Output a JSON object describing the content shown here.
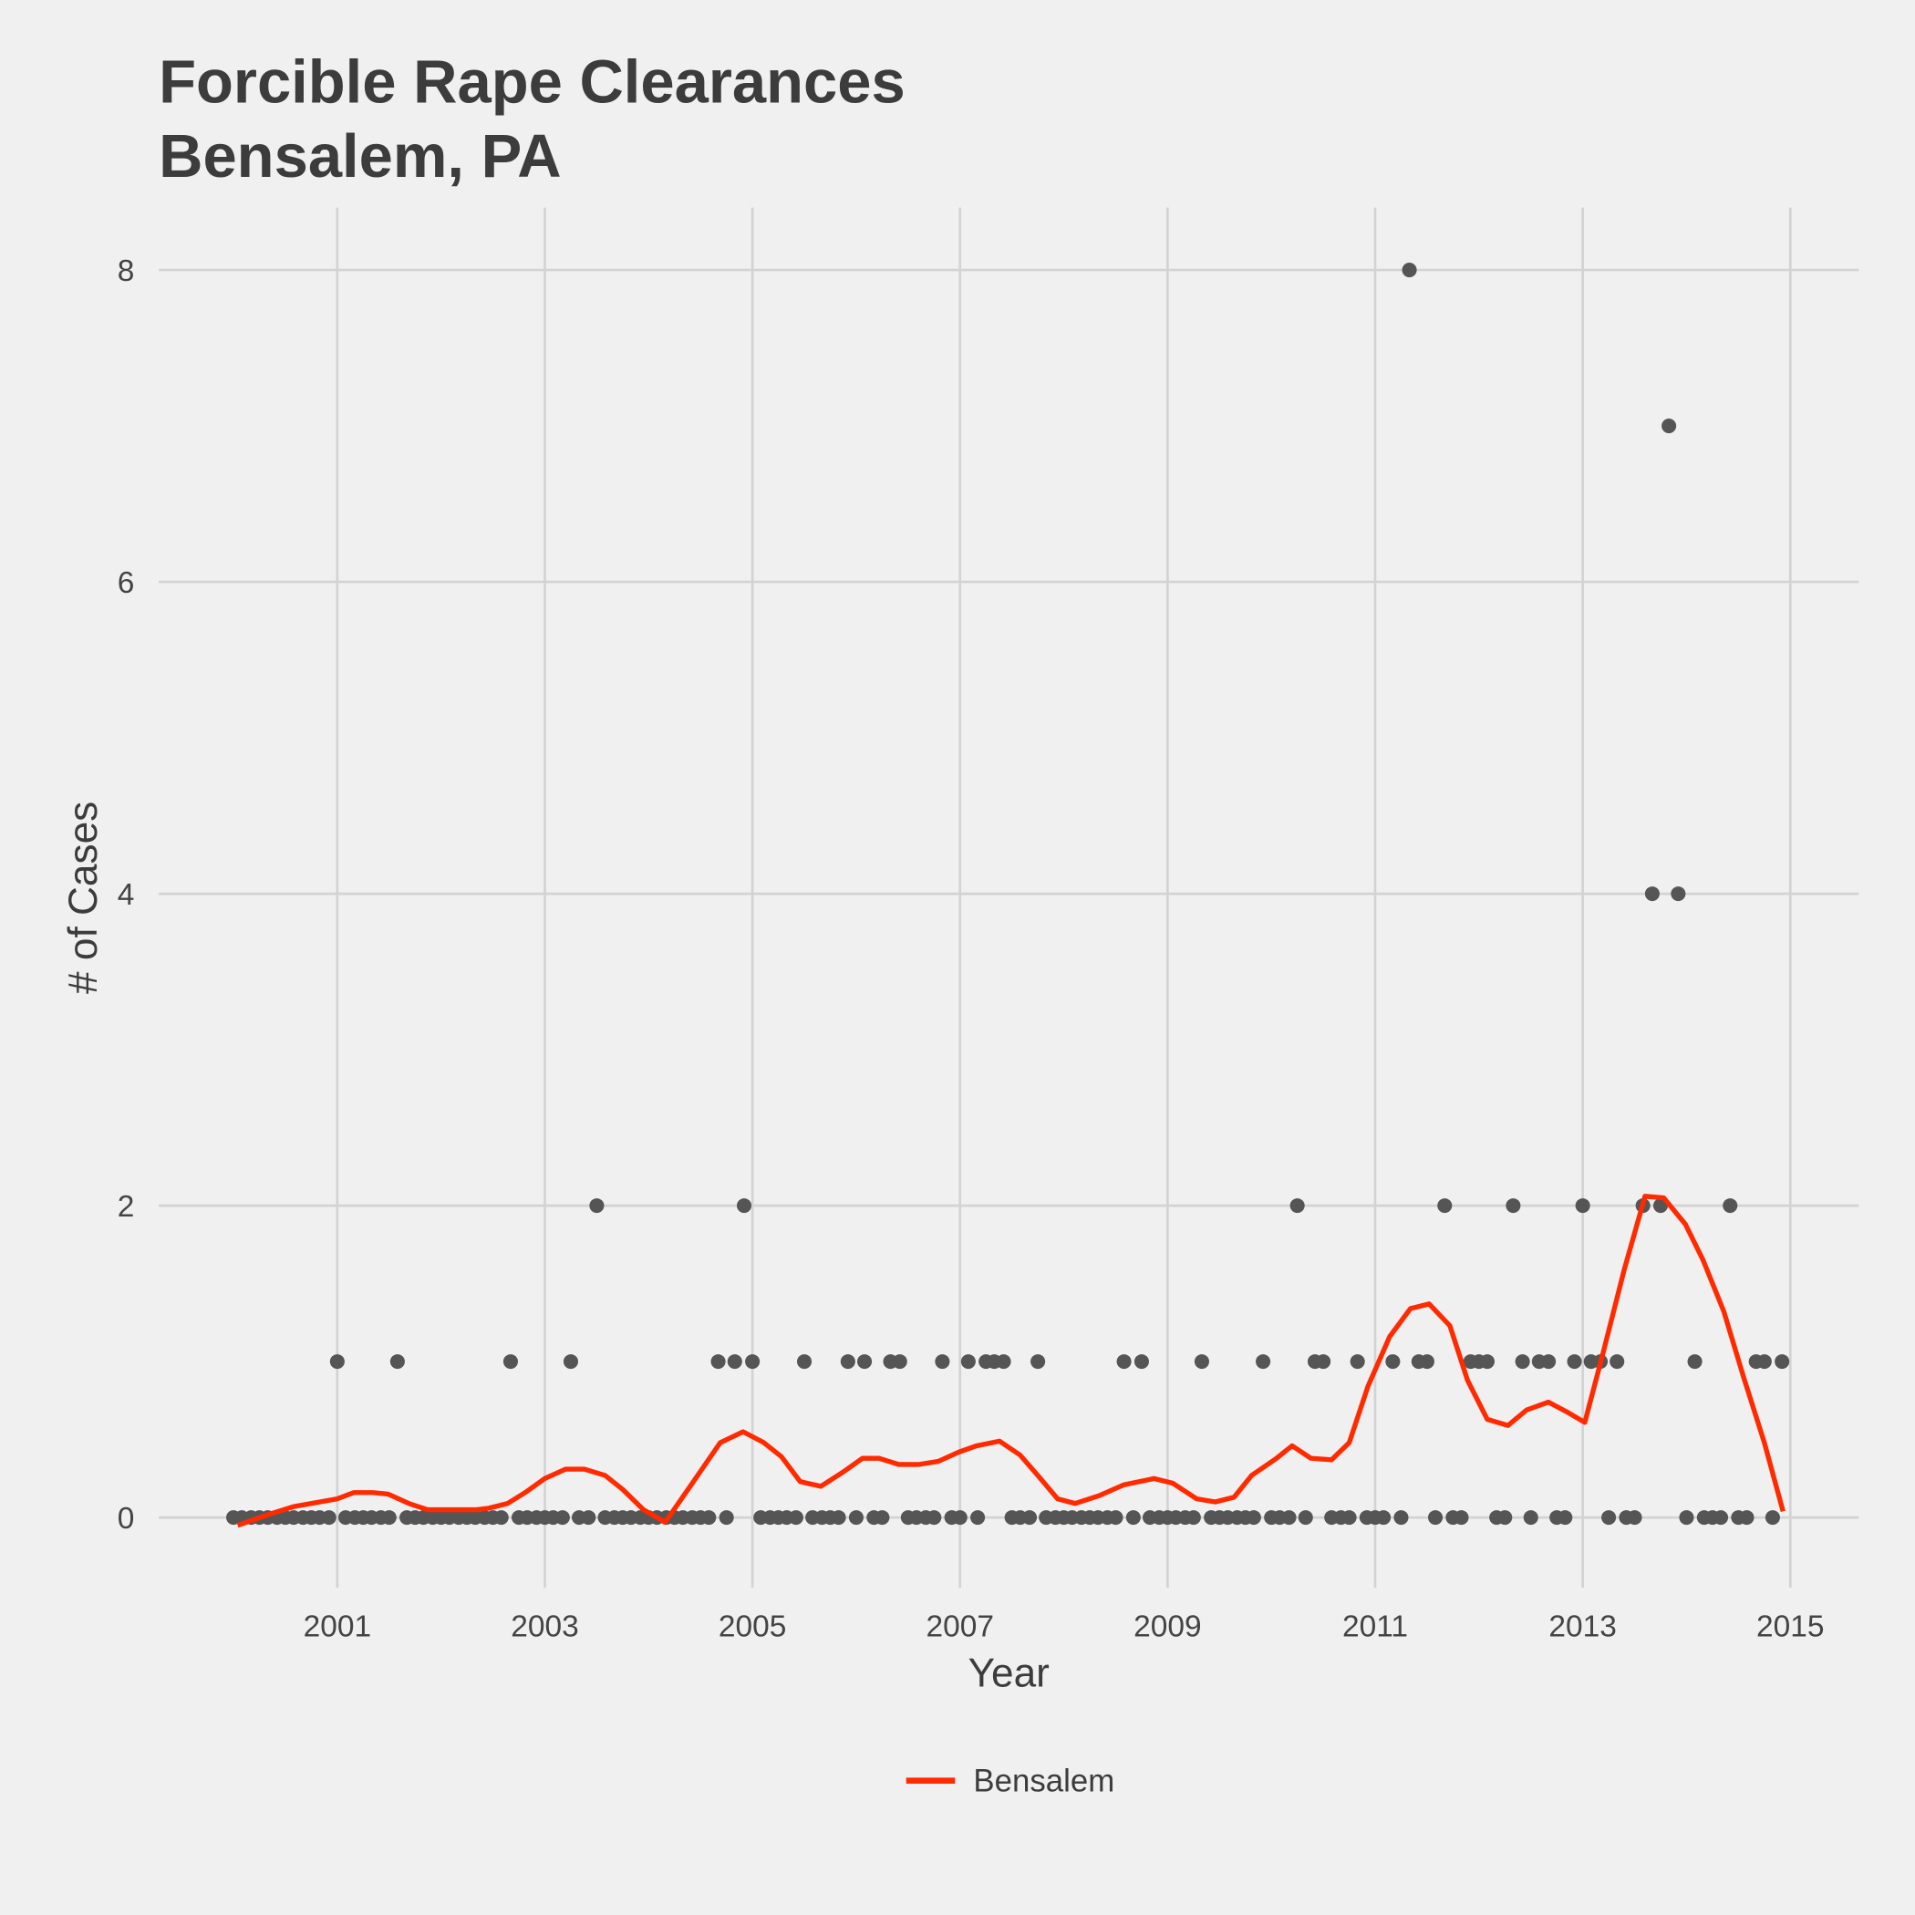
{
  "chart_data": {
    "type": "scatter",
    "title_lines": [
      "Forcible Rape Clearances",
      "Bensalem, PA"
    ],
    "x_label": "Year",
    "y_label": "# of Cases",
    "xlim": [
      1999.28,
      2015.66
    ],
    "ylim": [
      -0.45,
      8.4
    ],
    "xticks": [
      2001,
      2003,
      2005,
      2007,
      2009,
      2011,
      2013,
      2015
    ],
    "yticks": [
      0,
      2,
      4,
      6,
      8
    ],
    "grid": true,
    "legend_position": "bottom",
    "series": [
      {
        "type": "scatter",
        "color": "#555555",
        "x": [
          2000,
          2000.08,
          2000.17,
          2000.25,
          2000.33,
          2000.42,
          2000.5,
          2000.58,
          2000.67,
          2000.75,
          2000.83,
          2000.92,
          2001,
          2001.08,
          2001.17,
          2001.25,
          2001.33,
          2001.42,
          2001.5,
          2001.58,
          2001.67,
          2001.75,
          2001.83,
          2001.92,
          2002,
          2002.08,
          2002.17,
          2002.25,
          2002.33,
          2002.42,
          2002.5,
          2002.58,
          2002.67,
          2002.75,
          2002.83,
          2002.92,
          2003,
          2003.08,
          2003.17,
          2003.25,
          2003.33,
          2003.42,
          2003.5,
          2003.58,
          2003.67,
          2003.75,
          2003.83,
          2003.92,
          2004,
          2004.08,
          2004.17,
          2004.25,
          2004.33,
          2004.42,
          2004.5,
          2004.58,
          2004.67,
          2004.75,
          2004.83,
          2004.92,
          2005,
          2005.08,
          2005.17,
          2005.25,
          2005.33,
          2005.42,
          2005.5,
          2005.58,
          2005.67,
          2005.75,
          2005.83,
          2005.92,
          2006,
          2006.08,
          2006.17,
          2006.25,
          2006.33,
          2006.42,
          2006.5,
          2006.58,
          2006.67,
          2006.75,
          2006.83,
          2006.92,
          2007,
          2007.08,
          2007.17,
          2007.25,
          2007.33,
          2007.42,
          2007.5,
          2007.58,
          2007.67,
          2007.75,
          2007.83,
          2007.92,
          2008,
          2008.08,
          2008.17,
          2008.25,
          2008.33,
          2008.42,
          2008.5,
          2008.58,
          2008.67,
          2008.75,
          2008.83,
          2008.92,
          2009,
          2009.08,
          2009.17,
          2009.25,
          2009.33,
          2009.42,
          2009.5,
          2009.58,
          2009.67,
          2009.75,
          2009.83,
          2009.92,
          2010,
          2010.08,
          2010.17,
          2010.25,
          2010.33,
          2010.42,
          2010.5,
          2010.58,
          2010.67,
          2010.75,
          2010.83,
          2010.92,
          2011,
          2011.08,
          2011.17,
          2011.25,
          2011.33,
          2011.42,
          2011.5,
          2011.58,
          2011.67,
          2011.75,
          2011.83,
          2011.92,
          2012,
          2012.08,
          2012.17,
          2012.25,
          2012.33,
          2012.42,
          2012.5,
          2012.58,
          2012.67,
          2012.75,
          2012.83,
          2012.92,
          2013,
          2013.08,
          2013.17,
          2013.25,
          2013.33,
          2013.42,
          2013.5,
          2013.58,
          2013.67,
          2013.75,
          2013.83,
          2013.92,
          2014,
          2014.08,
          2014.17,
          2014.25,
          2014.33,
          2014.42,
          2014.5,
          2014.58,
          2014.67,
          2014.75,
          2014.83,
          2014.92
        ],
        "values": [
          0,
          0,
          0,
          0,
          0,
          0,
          0,
          0,
          0,
          0,
          0,
          0,
          1,
          0,
          0,
          0,
          0,
          0,
          0,
          1,
          0,
          0,
          0,
          0,
          0,
          0,
          0,
          0,
          0,
          0,
          0,
          0,
          1,
          0,
          0,
          0,
          0,
          0,
          0,
          1,
          0,
          0,
          2,
          0,
          0,
          0,
          0,
          0,
          0,
          0,
          0,
          0,
          0,
          0,
          0,
          0,
          1,
          0,
          1,
          2,
          1,
          0,
          0,
          0,
          0,
          0,
          1,
          0,
          0,
          0,
          0,
          1,
          0,
          1,
          0,
          0,
          1,
          1,
          0,
          0,
          0,
          0,
          1,
          0,
          0,
          1,
          0,
          1,
          1,
          1,
          0,
          0,
          0,
          1,
          0,
          0,
          0,
          0,
          0,
          0,
          0,
          0,
          0,
          1,
          0,
          1,
          0,
          0,
          0,
          0,
          0,
          0,
          1,
          0,
          0,
          0,
          0,
          0,
          0,
          1,
          0,
          0,
          0,
          2,
          0,
          1,
          1,
          0,
          0,
          0,
          1,
          0,
          0,
          0,
          1,
          0,
          8,
          1,
          1,
          0,
          2,
          0,
          0,
          1,
          1,
          1,
          0,
          0,
          2,
          1,
          0,
          1,
          1,
          0,
          0,
          1,
          2,
          1,
          1,
          0,
          1,
          0,
          0,
          2,
          4,
          2,
          7,
          4,
          0,
          1,
          0,
          0,
          0,
          2,
          0,
          0,
          1,
          1,
          0,
          1
        ]
      },
      {
        "type": "line",
        "name": "Bensalem",
        "color": "#ff2a00",
        "x": [
          2000.04,
          2000.34,
          2000.58,
          2001,
          2001.16,
          2001.34,
          2001.49,
          2001.69,
          2001.87,
          2002.34,
          2002.46,
          2002.64,
          2002.81,
          2003,
          2003.2,
          2003.38,
          2003.58,
          2003.75,
          2003.95,
          2004.16,
          2004.4,
          2004.69,
          2004.91,
          2005.11,
          2005.28,
          2005.46,
          2005.66,
          2005.87,
          2006.06,
          2006.22,
          2006.41,
          2006.6,
          2006.79,
          2006.99,
          2007.16,
          2007.38,
          2007.58,
          2007.75,
          2007.94,
          2008.11,
          2008.34,
          2008.58,
          2008.87,
          2009.05,
          2009.28,
          2009.46,
          2009.64,
          2009.81,
          2010.05,
          2010.2,
          2010.38,
          2010.58,
          2010.75,
          2010.93,
          2011.14,
          2011.34,
          2011.52,
          2011.72,
          2011.89,
          2012.08,
          2012.28,
          2012.46,
          2012.67,
          2012.84,
          2013.02,
          2013.19,
          2013.4,
          2013.6,
          2013.78,
          2013.99,
          2014.16,
          2014.36,
          2014.55,
          2014.75,
          2014.93
        ],
        "values": [
          -0.05,
          0.02,
          0.07,
          0.12,
          0.16,
          0.16,
          0.15,
          0.09,
          0.05,
          0.05,
          0.06,
          0.09,
          0.16,
          0.25,
          0.31,
          0.31,
          0.27,
          0.18,
          0.05,
          -0.03,
          0.2,
          0.48,
          0.55,
          0.48,
          0.39,
          0.23,
          0.2,
          0.29,
          0.38,
          0.38,
          0.34,
          0.34,
          0.36,
          0.42,
          0.46,
          0.49,
          0.4,
          0.27,
          0.12,
          0.09,
          0.14,
          0.21,
          0.25,
          0.22,
          0.12,
          0.1,
          0.13,
          0.27,
          0.38,
          0.46,
          0.38,
          0.37,
          0.48,
          0.84,
          1.16,
          1.34,
          1.37,
          1.23,
          0.88,
          0.63,
          0.59,
          0.69,
          0.74,
          0.68,
          0.61,
          1.04,
          1.59,
          2.06,
          2.05,
          1.88,
          1.65,
          1.32,
          0.9,
          0.48,
          0.04
        ]
      }
    ]
  }
}
